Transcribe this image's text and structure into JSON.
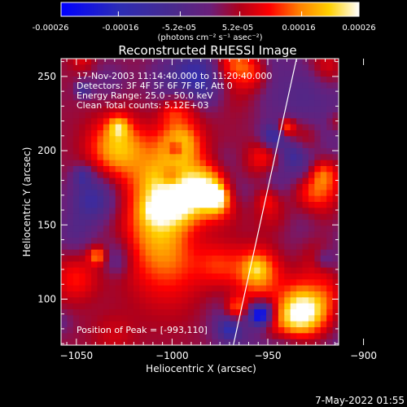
{
  "colorbar": {
    "tick_labels": [
      "-0.00026",
      "-0.00016",
      "-5.2e-05",
      "5.2e-05",
      "0.00016",
      "0.00026"
    ],
    "tick_values": [
      -0.00026,
      -0.00016,
      -5.2e-05,
      5.2e-05,
      0.00016,
      0.00026
    ],
    "range": [
      -0.00026,
      0.00026
    ],
    "units": "(photons cm⁻² s⁻¹ asec⁻²)"
  },
  "info": {
    "line1": "17-Nov-2003 11:14:40.000 to 11:20:40.000",
    "line2": "Detectors: 3F 4F 5F 6F 7F 8F, Att 0",
    "line3": "Energy Range: 25.0 - 50.0 keV",
    "line4": "Clean    Total counts: 5.12E+03",
    "peak": "Position of Peak = [-993,110]"
  },
  "footer": {
    "timestamp": "7-May-2022 01:55"
  },
  "colors": {
    "background": "#000000",
    "text": "#ffffff",
    "colormap_stops": [
      "#0000ff",
      "#2d2db4",
      "#4a2a8c",
      "#6a1f7a",
      "#b0001a",
      "#ff0000",
      "#ff8000",
      "#ffd000",
      "#ffffff"
    ]
  },
  "chart_data": {
    "type": "heatmap",
    "title": "Reconstructed RHESSI Image",
    "xlabel": "Heliocentric X (arcsec)",
    "ylabel": "Heliocentric Y (arcsec)",
    "xlim": [
      -1058,
      -913
    ],
    "ylim": [
      69,
      262
    ],
    "x_ticks": [
      -1050,
      -1000,
      -950,
      -900
    ],
    "y_ticks": [
      100,
      150,
      200,
      250
    ],
    "x_tick_labels": [
      "−1050",
      "−1000",
      "−950",
      "−900"
    ],
    "y_tick_labels": [
      "100",
      "150",
      "200",
      "250"
    ],
    "limb_line": [
      [
        -968,
        69
      ],
      [
        -935,
        262
      ]
    ],
    "peak": [
      -993,
      110
    ]
  }
}
